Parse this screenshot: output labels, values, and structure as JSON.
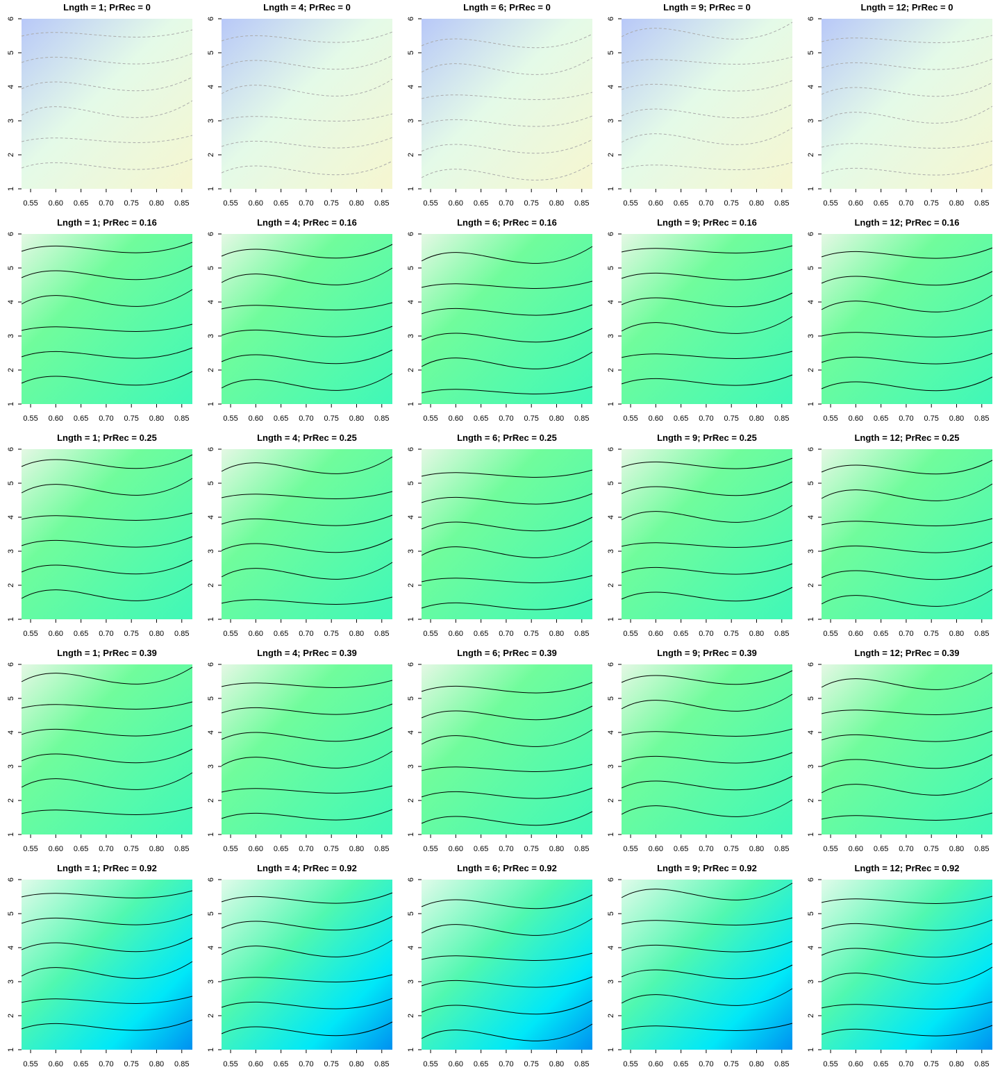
{
  "chart_data": {
    "type": "contour-grid",
    "xlim": [
      0.532,
      0.871
    ],
    "ylim": [
      1,
      6
    ],
    "xticks": [
      {
        "value": 0.55,
        "label": "0.55"
      },
      {
        "value": 0.6,
        "label": "0.60"
      },
      {
        "value": 0.65,
        "label": "0.65"
      },
      {
        "value": 0.7,
        "label": "0.70"
      },
      {
        "value": 0.75,
        "label": "0.75"
      },
      {
        "value": 0.8,
        "label": "0.80"
      },
      {
        "value": 0.85,
        "label": "0.85"
      }
    ],
    "yticks": [
      1,
      2,
      3,
      4,
      5,
      6
    ],
    "panels": [
      {
        "title": "Lngth = 1; PrRec = 0"
      },
      {
        "title": "Lngth = 4; PrRec = 0"
      },
      {
        "title": "Lngth = 6; PrRec = 0"
      },
      {
        "title": "Lngth = 9; PrRec = 0"
      },
      {
        "title": "Lngth = 12; PrRec = 0"
      },
      {
        "title": "Lngth = 1; PrRec = 0.16"
      },
      {
        "title": "Lngth = 4; PrRec = 0.16"
      },
      {
        "title": "Lngth = 6; PrRec = 0.16"
      },
      {
        "title": "Lngth = 9; PrRec = 0.16"
      },
      {
        "title": "Lngth = 12; PrRec = 0.16"
      },
      {
        "title": "Lngth = 1; PrRec = 0.25"
      },
      {
        "title": "Lngth = 4; PrRec = 0.25"
      },
      {
        "title": "Lngth = 6; PrRec = 0.25"
      },
      {
        "title": "Lngth = 9; PrRec = 0.25"
      },
      {
        "title": "Lngth = 12; PrRec = 0.25"
      },
      {
        "title": "Lngth = 1; PrRec = 0.39"
      },
      {
        "title": "Lngth = 4; PrRec = 0.39"
      },
      {
        "title": "Lngth = 6; PrRec = 0.39"
      },
      {
        "title": "Lngth = 9; PrRec = 0.39"
      },
      {
        "title": "Lngth = 12; PrRec = 0.39"
      },
      {
        "title": "Lngth = 1; PrRec = 0.92"
      },
      {
        "title": "Lngth = 4; PrRec = 0.92"
      },
      {
        "title": "Lngth = 6; PrRec = 0.92"
      },
      {
        "title": "Lngth = 9; PrRec = 0.92"
      },
      {
        "title": "Lngth = 12; PrRec = 0.92"
      }
    ]
  }
}
